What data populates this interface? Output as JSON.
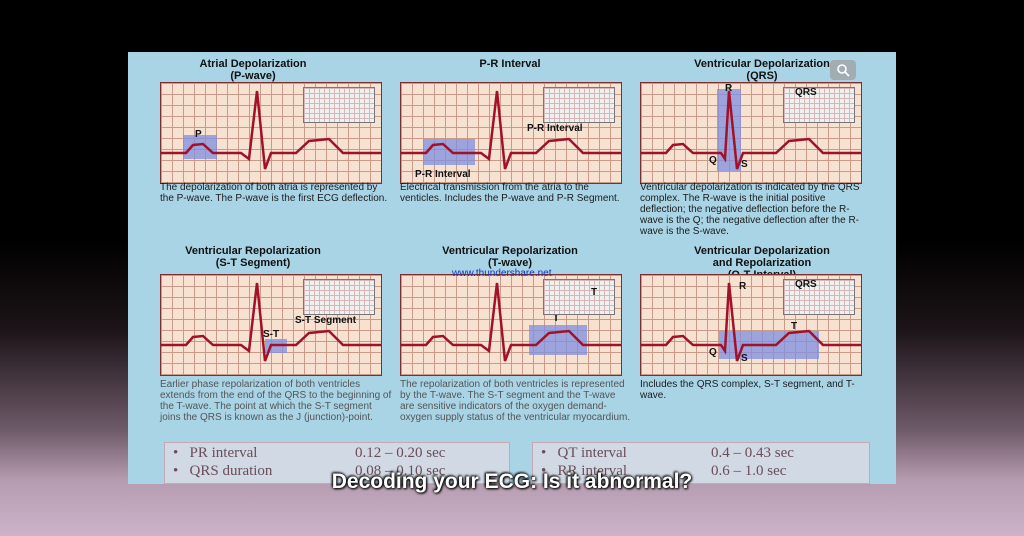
{
  "panels": [
    {
      "title1": "Atrial Depolarization",
      "title2": "(P-wave)",
      "label_a": "P",
      "caption": "The depolarization of both atria is represented by the P-wave. The P-wave is the first ECG deflection."
    },
    {
      "title1": "P-R Interval",
      "title2": "",
      "label_a": "P-R Interval",
      "label_b": "P-R Interval",
      "caption": "Electrical transmission from the atria to the venticles. Includes the P-wave and P-R Segment."
    },
    {
      "title1": "Ventricular Depolarization",
      "title2": "(QRS)",
      "label_a": "R",
      "label_b": "QRS",
      "label_c": "Q",
      "label_d": "S",
      "caption": "Ventricular depolarization is indicated by the QRS complex. The R-wave is the initial positive deflection; the negative deflection before the R-wave is the Q; the negative deflection after the R-wave is the S-wave."
    },
    {
      "title1": "Ventricular Repolarization",
      "title2": "(S-T Segment)",
      "label_a": "S-T",
      "label_b": "S-T Segment",
      "caption": "Earlier phase repolarization of both ventricles extends from the end of the QRS to the beginning of the T-wave. The point at which the S-T segment joins the QRS is known as the J (junction)-point."
    },
    {
      "title1": "Ventricular Repolarization",
      "title2": "(T-wave)",
      "label_a": "T",
      "label_b": "T",
      "caption": "The repolarization of both ventricles is represented by the T-wave. The S-T segment and the T-wave are sensitive indicators of the oxygen demand-oxygen supply status of the ventricular myocardium."
    },
    {
      "title1": "Ventricular Depolarization",
      "title2": "and Repolarization",
      "title3": "(Q-T Interval)",
      "label_a": "R",
      "label_b": "QRS",
      "label_c": "T",
      "label_d": "Q",
      "label_e": "S",
      "caption": "Includes the QRS complex, S-T segment, and T-wave."
    }
  ],
  "watermark": "www.thundershare.net",
  "table": {
    "left": [
      {
        "bullet": "•",
        "name": "PR interval",
        "value": "0.12 – 0.20 sec"
      },
      {
        "bullet": "•",
        "name": "QRS duration",
        "value": "0.08 – 0.10 sec"
      }
    ],
    "right": [
      {
        "bullet": "•",
        "name": "QT interval",
        "value": "0.4 – 0.43 sec"
      },
      {
        "bullet": "•",
        "name": "RR interval",
        "value": "0.6 – 1.0  sec"
      }
    ]
  },
  "caption": "Decoding your ECG: Is it abnormal?",
  "icons": {
    "zoom": "magnifier-icon"
  },
  "colors": {
    "trace": "#a0112a",
    "highlight": "#7f8fe0",
    "figure_bg": "#a8d4e6"
  }
}
